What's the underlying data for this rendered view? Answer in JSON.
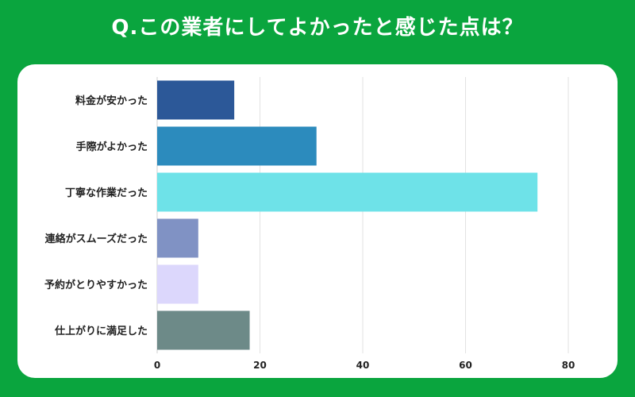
{
  "title": "Q.この業者にしてよかったと感じた点は？",
  "colors": {
    "background": "#0aa53e",
    "panel": "#ffffff",
    "grid": "#e2e2e2"
  },
  "chart_data": {
    "type": "bar",
    "orientation": "horizontal",
    "title": "",
    "xlabel": "",
    "ylabel": "",
    "xlim": [
      0,
      80
    ],
    "xticks": [
      0,
      20,
      40,
      60,
      80
    ],
    "categories": [
      "料金が安かった",
      "手際がよかった",
      "丁寧な作業だった",
      "連絡がスムーズだった",
      "予約がとりやすかった",
      "仕上がりに満足した"
    ],
    "values": [
      15,
      31,
      74,
      8,
      8,
      18
    ],
    "bar_colors": [
      "#2c5898",
      "#2c8bbd",
      "#6ee2e8",
      "#8092c4",
      "#dcd7fc",
      "#6d8a88"
    ]
  }
}
